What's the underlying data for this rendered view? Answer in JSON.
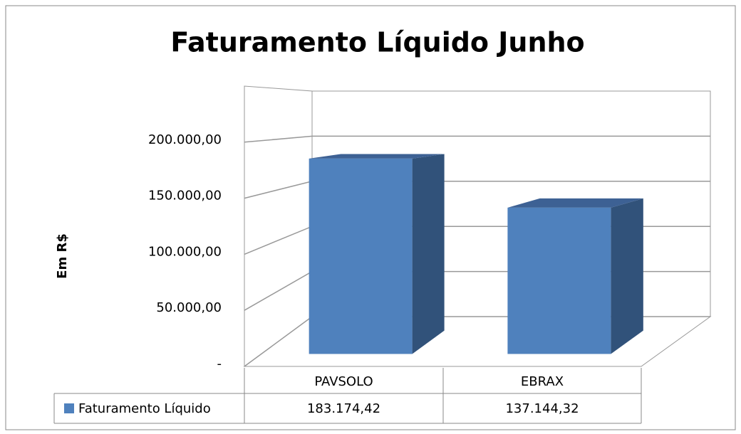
{
  "chart_data": {
    "type": "bar3d",
    "title": "Faturamento Líquido Junho",
    "y_label": "Em R$",
    "categories": [
      "PAVSOLO",
      "EBRAX"
    ],
    "series": [
      {
        "name": "Faturamento Líquido",
        "color": "#4f81bd",
        "values": [
          183174.42,
          137144.32
        ],
        "value_labels": [
          "183.174,42",
          "137.144,32"
        ]
      }
    ],
    "ylim": [
      0,
      250000
    ],
    "yticks": [
      {
        "value": 0,
        "label": "-"
      },
      {
        "value": 50000,
        "label": "50.000,00"
      },
      {
        "value": 100000,
        "label": "100.000,00"
      },
      {
        "value": 150000,
        "label": "150.000,00"
      },
      {
        "value": 200000,
        "label": "200.000,00"
      }
    ],
    "grid": true,
    "data_table": true
  }
}
